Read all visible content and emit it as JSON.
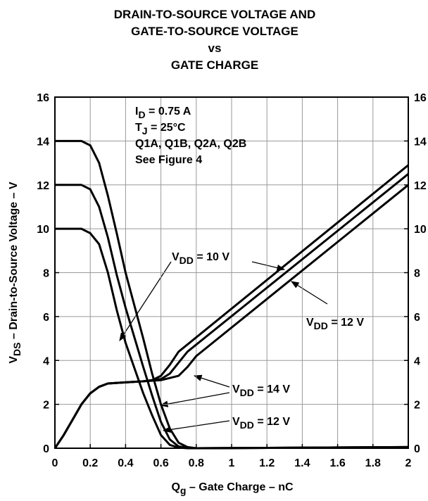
{
  "chart_data": {
    "type": "line",
    "title": [
      "DRAIN-TO-SOURCE VOLTAGE AND",
      "GATE-TO-SOURCE VOLTAGE",
      "vs",
      "GATE CHARGE"
    ],
    "x_label": [
      "Q",
      "g",
      " – Gate Charge – nC"
    ],
    "y_label": [
      "V",
      "DS",
      " – Drain-to-Source Voltage – V"
    ],
    "xlim": [
      0,
      2
    ],
    "xticks": [
      0,
      0.2,
      0.4,
      0.6,
      0.8,
      1,
      1.2,
      1.4,
      1.6,
      1.8,
      2
    ],
    "ylim": [
      0,
      16
    ],
    "yticks": [
      0,
      2,
      4,
      6,
      8,
      10,
      12,
      14,
      16
    ],
    "y2lim": [
      0,
      16
    ],
    "y2ticks": [
      0,
      2,
      4,
      6,
      8,
      10,
      12,
      14,
      16
    ],
    "grid": true,
    "color": "#000000",
    "annotations": [
      [
        "I",
        "D",
        " = 0.75 A"
      ],
      [
        "T",
        "J",
        " = 25°C"
      ],
      [
        "Q1A, Q1B, Q2A, Q2B"
      ],
      [
        "See Figure 4"
      ]
    ],
    "callouts": [
      [
        "V",
        "DD",
        " = 10 V"
      ],
      [
        "V",
        "DD",
        " = 12 V"
      ],
      [
        "V",
        "DD",
        " = 14 V"
      ],
      [
        "V",
        "DD",
        " = 12 V"
      ]
    ],
    "series": [
      {
        "x": [
          0,
          0.15,
          0.2,
          0.25,
          0.3,
          0.35,
          0.4,
          0.5,
          0.55,
          0.6,
          0.65,
          0.7,
          0.75,
          0.8,
          2
        ],
        "values": [
          10,
          10,
          9.8,
          9.3,
          8,
          6.3,
          4.8,
          2.5,
          1.5,
          0.6,
          0.15,
          0.03,
          0,
          0,
          0.05
        ]
      },
      {
        "x": [
          0,
          0.15,
          0.2,
          0.25,
          0.3,
          0.35,
          0.4,
          0.5,
          0.55,
          0.6,
          0.65,
          0.7,
          0.75,
          0.8,
          2
        ],
        "values": [
          12,
          12,
          11.8,
          11,
          9.6,
          7.9,
          6.4,
          3.7,
          2.4,
          1.2,
          0.4,
          0.08,
          0.02,
          0,
          0.05
        ]
      },
      {
        "x": [
          0,
          0.15,
          0.2,
          0.25,
          0.3,
          0.35,
          0.4,
          0.5,
          0.55,
          0.6,
          0.65,
          0.7,
          0.75,
          0.8,
          2
        ],
        "values": [
          14,
          14,
          13.8,
          13,
          11.5,
          9.8,
          8,
          5,
          3.4,
          2,
          0.9,
          0.25,
          0.05,
          0,
          0.05
        ]
      },
      {
        "x": [
          0,
          0.05,
          0.1,
          0.15,
          0.2,
          0.25,
          0.3,
          0.4,
          0.5,
          0.55,
          0.6,
          0.65,
          0.7,
          2
        ],
        "values": [
          0,
          0.6,
          1.3,
          2,
          2.5,
          2.8,
          2.95,
          3,
          3.05,
          3.1,
          3.3,
          3.8,
          4.4,
          12.9
        ]
      },
      {
        "x": [
          0,
          0.05,
          0.1,
          0.15,
          0.2,
          0.25,
          0.3,
          0.4,
          0.5,
          0.6,
          0.65,
          0.7,
          0.75,
          2
        ],
        "values": [
          0,
          0.6,
          1.3,
          2,
          2.5,
          2.8,
          2.95,
          3,
          3.05,
          3.15,
          3.4,
          3.9,
          4.4,
          12.5
        ]
      },
      {
        "x": [
          0,
          0.05,
          0.1,
          0.15,
          0.2,
          0.25,
          0.3,
          0.4,
          0.5,
          0.6,
          0.7,
          0.75,
          0.8,
          2
        ],
        "values": [
          0,
          0.6,
          1.3,
          2,
          2.5,
          2.8,
          2.95,
          3,
          3.05,
          3.1,
          3.3,
          3.7,
          4.2,
          12
        ]
      }
    ]
  }
}
